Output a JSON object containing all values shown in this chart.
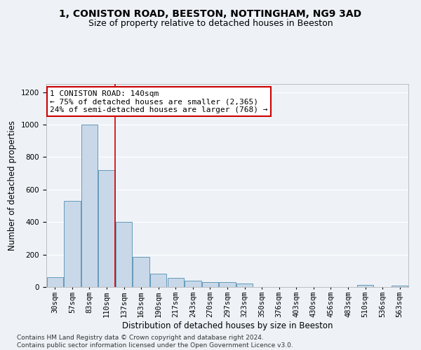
{
  "title": "1, CONISTON ROAD, BEESTON, NOTTINGHAM, NG9 3AD",
  "subtitle": "Size of property relative to detached houses in Beeston",
  "xlabel": "Distribution of detached houses by size in Beeston",
  "ylabel": "Number of detached properties",
  "bar_color": "#c8d8e8",
  "bar_edge_color": "#6699bb",
  "background_color": "#eef2f7",
  "grid_color": "#ffffff",
  "categories": [
    "30sqm",
    "57sqm",
    "83sqm",
    "110sqm",
    "137sqm",
    "163sqm",
    "190sqm",
    "217sqm",
    "243sqm",
    "270sqm",
    "297sqm",
    "323sqm",
    "350sqm",
    "376sqm",
    "403sqm",
    "430sqm",
    "456sqm",
    "483sqm",
    "510sqm",
    "536sqm",
    "563sqm"
  ],
  "values": [
    60,
    530,
    1000,
    720,
    400,
    185,
    80,
    55,
    40,
    30,
    30,
    20,
    0,
    0,
    0,
    0,
    0,
    0,
    15,
    0,
    8
  ],
  "vline_x": 3.5,
  "annotation_text": "1 CONISTON ROAD: 140sqm\n← 75% of detached houses are smaller (2,365)\n24% of semi-detached houses are larger (768) →",
  "annotation_box_color": "#ffffff",
  "annotation_border_color": "#cc0000",
  "ylim": [
    0,
    1250
  ],
  "yticks": [
    0,
    200,
    400,
    600,
    800,
    1000,
    1200
  ],
  "footnote": "Contains HM Land Registry data © Crown copyright and database right 2024.\nContains public sector information licensed under the Open Government Licence v3.0.",
  "title_fontsize": 10,
  "subtitle_fontsize": 9,
  "axis_label_fontsize": 8.5,
  "tick_fontsize": 7.5,
  "annotation_fontsize": 8,
  "footnote_fontsize": 6.5
}
